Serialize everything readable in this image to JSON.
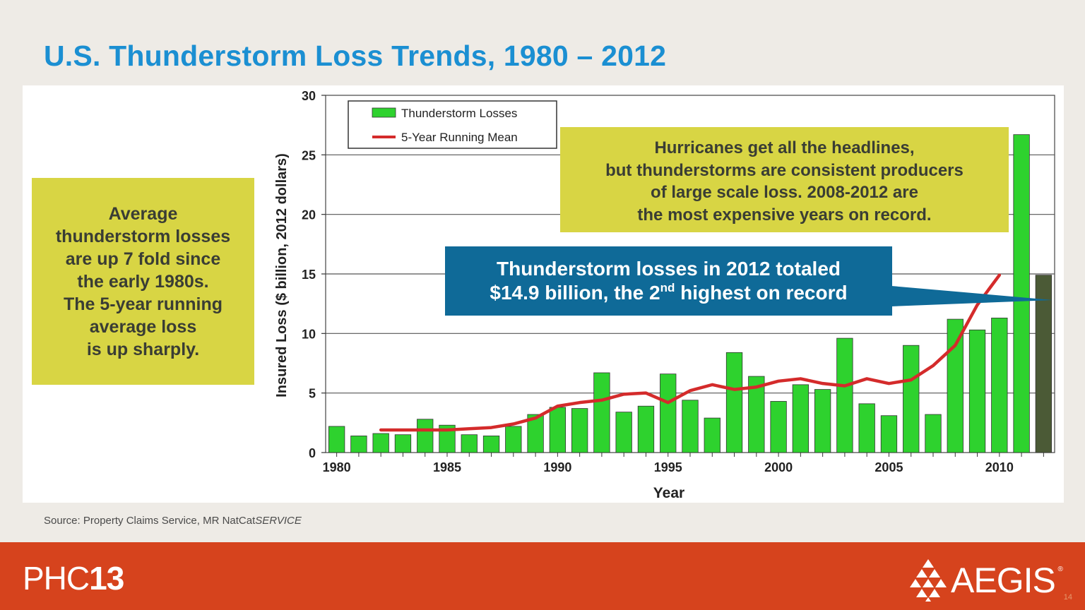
{
  "slide": {
    "title": "U.S. Thunderstorm Loss Trends, 1980 – 2012",
    "left_callout": [
      "Average",
      "thunderstorm losses",
      "are up 7 fold since",
      "the early 1980s.",
      "The 5-year running",
      "average loss",
      "is up sharply."
    ],
    "top_callout": [
      "Hurricanes get all the headlines,",
      "but thunderstorms are consistent producers",
      "of large scale loss. 2008-2012 are",
      "the most expensive years on record."
    ],
    "blue_callout": {
      "line1": "Thunderstorm losses in 2012 totaled",
      "line2_pre": "$14.9 billion, the 2",
      "line2_sup": "nd",
      "line2_post": " highest on record"
    },
    "source_prefix": "Source: Property Claims Service, MR NatCat",
    "source_italic": "SERVICE"
  },
  "footer": {
    "logo_left_thin": "PHC",
    "logo_left_bold": "13",
    "logo_right": "AEGIS",
    "logo_right_reg": "®",
    "page_number": "14"
  },
  "colors": {
    "title": "#1b8fd2",
    "callout_yellow": "#d8d544",
    "callout_blue": "#0f6a98",
    "footer": "#d6431d",
    "bar": "#2ed22e",
    "bar_highlight": "#4b5a36",
    "mean_line": "#d42b2b"
  },
  "chart_data": {
    "type": "bar",
    "xlabel": "Year",
    "ylabel": "Insured Loss ($ billion, 2012 dollars)",
    "ylim": [
      0,
      30
    ],
    "yticks": [
      0,
      5,
      10,
      15,
      20,
      25,
      30
    ],
    "xtick_years": [
      1980,
      1985,
      1990,
      1995,
      2000,
      2005,
      2010
    ],
    "grid": true,
    "legend_position": "top-left",
    "years": [
      1980,
      1981,
      1982,
      1983,
      1984,
      1985,
      1986,
      1987,
      1988,
      1989,
      1990,
      1991,
      1992,
      1993,
      1994,
      1995,
      1996,
      1997,
      1998,
      1999,
      2000,
      2001,
      2002,
      2003,
      2004,
      2005,
      2006,
      2007,
      2008,
      2009,
      2010,
      2011,
      2012
    ],
    "series": [
      {
        "name": "Thunderstorm Losses",
        "kind": "bar",
        "values": [
          2.2,
          1.4,
          1.6,
          1.5,
          2.8,
          2.3,
          1.5,
          1.4,
          2.2,
          3.2,
          3.8,
          3.7,
          6.7,
          3.4,
          3.9,
          6.6,
          4.4,
          2.9,
          8.4,
          6.4,
          4.3,
          5.7,
          5.3,
          9.6,
          4.1,
          3.1,
          9.0,
          3.2,
          11.2,
          10.3,
          11.3,
          26.7,
          14.9
        ],
        "highlight_last": true
      },
      {
        "name": "5-Year Running Mean",
        "kind": "line",
        "x": [
          1982,
          1983,
          1984,
          1985,
          1986,
          1987,
          1988,
          1989,
          1990,
          1991,
          1992,
          1993,
          1994,
          1995,
          1996,
          1997,
          1998,
          1999,
          2000,
          2001,
          2002,
          2003,
          2004,
          2005,
          2006,
          2007,
          2008,
          2009,
          2010
        ],
        "values": [
          1.9,
          1.9,
          1.9,
          1.9,
          2.0,
          2.1,
          2.4,
          2.9,
          3.9,
          4.2,
          4.4,
          4.9,
          5.0,
          4.2,
          5.2,
          5.7,
          5.3,
          5.5,
          6.0,
          6.2,
          5.8,
          5.6,
          6.2,
          5.8,
          6.1,
          7.3,
          9.0,
          12.4,
          14.9
        ]
      }
    ]
  }
}
